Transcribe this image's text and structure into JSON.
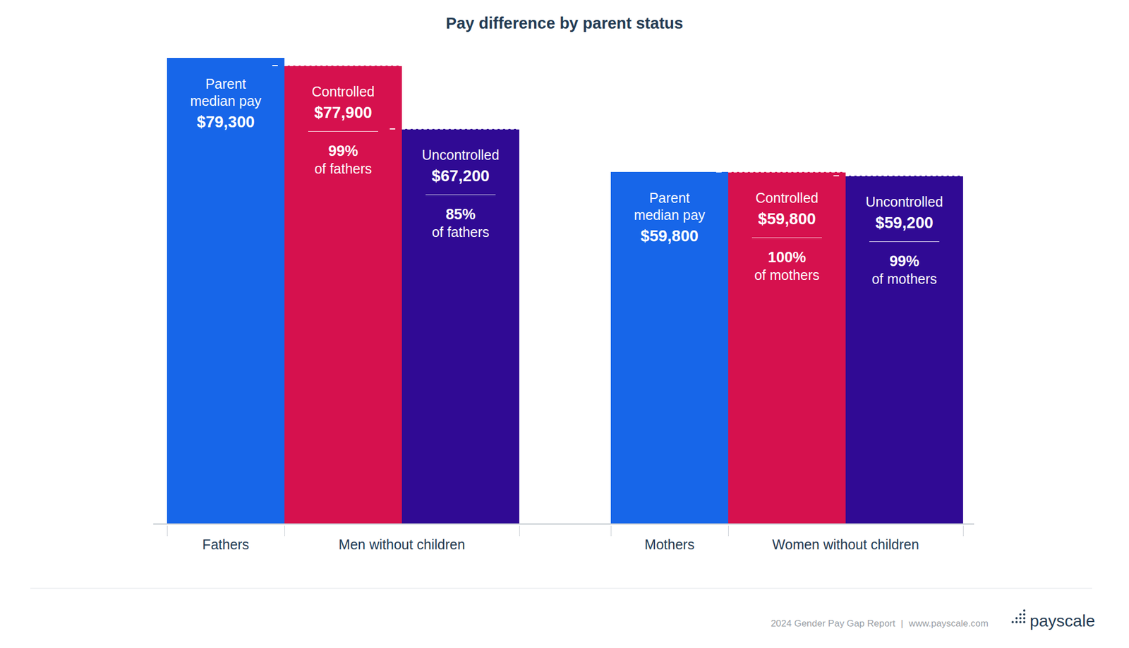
{
  "chart_data": {
    "type": "bar",
    "title": "Pay difference by parent status",
    "ylim": [
      0,
      79300
    ],
    "tick_labels": false,
    "data_labels": true,
    "groups": [
      {
        "labels": [
          "Fathers",
          "Men without children"
        ],
        "bars": [
          {
            "name": "Parent median pay",
            "value": 79300,
            "value_label": "$79,300",
            "color": "#1766e9"
          },
          {
            "name": "Controlled",
            "value": 77900,
            "value_label": "$77,900",
            "percent_label": "99%",
            "percent_of": "of fathers",
            "color": "#d6114e"
          },
          {
            "name": "Uncontrolled",
            "value": 67200,
            "value_label": "$67,200",
            "percent_label": "85%",
            "percent_of": "of fathers",
            "color": "#300a94"
          }
        ]
      },
      {
        "labels": [
          "Mothers",
          "Women without children"
        ],
        "bars": [
          {
            "name": "Parent median pay",
            "value": 59800,
            "value_label": "$59,800",
            "color": "#1766e9"
          },
          {
            "name": "Controlled",
            "value": 59800,
            "value_label": "$59,800",
            "percent_label": "100%",
            "percent_of": "of mothers",
            "color": "#d6114e"
          },
          {
            "name": "Uncontrolled",
            "value": 59200,
            "value_label": "$59,200",
            "percent_label": "99%",
            "percent_of": "of mothers",
            "color": "#300a94"
          }
        ]
      }
    ]
  },
  "footer": {
    "report": "2024 Gender Pay Gap Report",
    "separator": "|",
    "url": "www.payscale.com",
    "brand": "payscale"
  }
}
